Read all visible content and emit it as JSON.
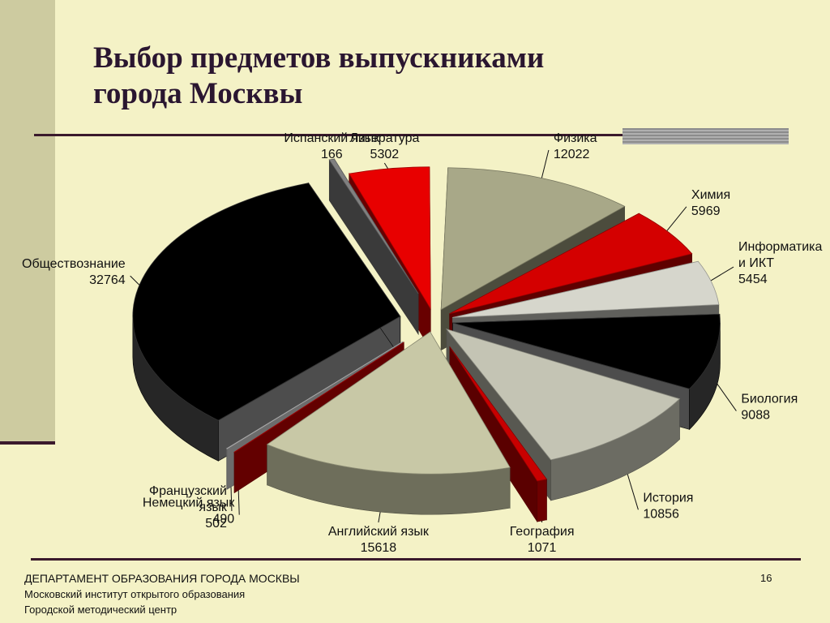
{
  "slide": {
    "title_lines": [
      "Выбор предметов выпускниками",
      "города Москвы"
    ],
    "footer_lines": [
      "ДЕПАРТАМЕНТ ОБРАЗОВАНИЯ ГОРОДА МОСКВЫ",
      "Московский институт открытого образования",
      "Городской методический центр"
    ],
    "page_number": "16"
  },
  "chart_data": {
    "type": "pie",
    "title": "Выбор предметов выпускниками города Москвы",
    "style": "3d-exploded",
    "legend": "none",
    "categories": [
      "Физика",
      "Химия",
      "Информатика и ИКТ",
      "Биология",
      "История",
      "География",
      "Английский язык",
      "Немецкий язык",
      "Французский язык",
      "Обществознание",
      "Испанский язык",
      "Литература"
    ],
    "values": [
      12022,
      5969,
      5454,
      9088,
      10856,
      1071,
      15618,
      490,
      502,
      32764,
      166,
      5302
    ],
    "labels": [
      [
        "Физика",
        "12022"
      ],
      [
        "Химия",
        "5969"
      ],
      [
        "Информатика",
        "и ИКТ",
        "5454"
      ],
      [
        "Биология",
        "9088"
      ],
      [
        "История",
        "10856"
      ],
      [
        "География",
        "1071"
      ],
      [
        "Английский язык",
        "15618"
      ],
      [
        "Немецкий язык",
        "490"
      ],
      [
        "Французский",
        "язык",
        "502"
      ],
      [
        "Обществознание",
        "32764"
      ],
      [
        "Испанский язык",
        "166"
      ],
      [
        "Литература",
        "5302"
      ]
    ],
    "colors": [
      "#a8a888",
      "#d40000",
      "#d6d6cc",
      "#000000",
      "#c4c4b4",
      "#c80000",
      "#c8c8a6",
      "#dd0000",
      "#f0f0f0",
      "#000000",
      "#808080",
      "#e80000"
    ]
  }
}
